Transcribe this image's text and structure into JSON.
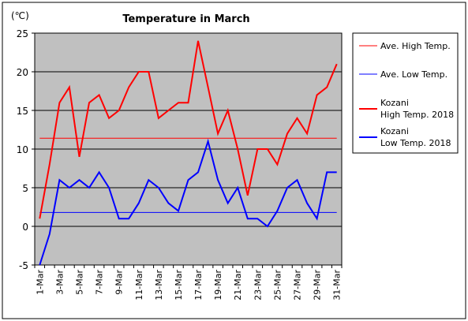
{
  "chart_data": {
    "type": "line",
    "title": "Temperature in March",
    "unit_label": "(℃)",
    "ylim": [
      -5,
      25
    ],
    "y_ticks": [
      -5,
      0,
      5,
      10,
      15,
      20,
      25
    ],
    "categories": [
      "1-Mar",
      "2-Mar",
      "3-Mar",
      "4-Mar",
      "5-Mar",
      "6-Mar",
      "7-Mar",
      "8-Mar",
      "9-Mar",
      "10-Mar",
      "11-Mar",
      "12-Mar",
      "13-Mar",
      "14-Mar",
      "15-Mar",
      "16-Mar",
      "17-Mar",
      "18-Mar",
      "19-Mar",
      "20-Mar",
      "21-Mar",
      "22-Mar",
      "23-Mar",
      "24-Mar",
      "25-Mar",
      "26-Mar",
      "27-Mar",
      "28-Mar",
      "29-Mar",
      "30-Mar",
      "31-Mar"
    ],
    "x_tick_labels": [
      "1-Mar",
      "3-Mar",
      "5-Mar",
      "7-Mar",
      "9-Mar",
      "11-Mar",
      "13-Mar",
      "15-Mar",
      "17-Mar",
      "19-Mar",
      "21-Mar",
      "23-Mar",
      "25-Mar",
      "27-Mar",
      "29-Mar",
      "31-Mar"
    ],
    "grid": true,
    "legend_position": "right",
    "series": [
      {
        "name": "Ave. High Temp.",
        "color": "#ff0000",
        "thick": false,
        "constant": 11.4
      },
      {
        "name": "Ave. Low Temp.",
        "color": "#0000ff",
        "thick": false,
        "constant": 1.8
      },
      {
        "name": "Kozani\nHigh Temp. 2018",
        "color": "#ff0000",
        "thick": true,
        "values": [
          1,
          8,
          16,
          18,
          9,
          16,
          17,
          14,
          15,
          18,
          20,
          20,
          14,
          15,
          16,
          16,
          24,
          18,
          12,
          15,
          10,
          4,
          10,
          10,
          8,
          12,
          14,
          12,
          17,
          18,
          21
        ]
      },
      {
        "name": "Kozani\nLow Temp. 2018",
        "color": "#0000ff",
        "thick": true,
        "values": [
          -5,
          -1,
          6,
          5,
          6,
          5,
          7,
          5,
          1,
          1,
          3,
          6,
          5,
          3,
          2,
          6,
          7,
          11,
          6,
          3,
          5,
          1,
          1,
          0,
          2,
          5,
          6,
          3,
          1,
          7,
          7
        ]
      }
    ]
  }
}
